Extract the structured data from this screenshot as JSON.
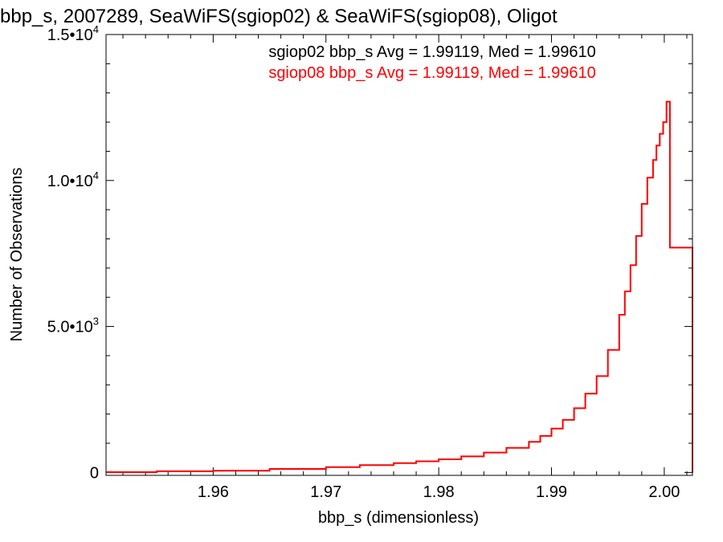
{
  "chart_data": {
    "type": "line",
    "title": "bbp_s, 2007289, SeaWiFS(sgiop02) & SeaWiFS(sgiop08), Oligot",
    "xlabel": "bbp_s (dimensionless)",
    "ylabel": "Number of Observations",
    "xlim": [
      1.9505,
      2.0025
    ],
    "ylim": [
      -100,
      15000
    ],
    "x_ticks": [
      1.96,
      1.97,
      1.98,
      1.99,
      2.0
    ],
    "x_tick_labels": [
      "1.96",
      "1.97",
      "1.98",
      "1.99",
      "2.00"
    ],
    "y_ticks": [
      0,
      5000,
      10000,
      15000
    ],
    "y_tick_labels": [
      {
        "value": 0,
        "mantissa": "0",
        "exp": ""
      },
      {
        "value": 5000,
        "mantissa": "5.0•10",
        "exp": "3"
      },
      {
        "value": 10000,
        "mantissa": "1.0•10",
        "exp": "4"
      },
      {
        "value": 15000,
        "mantissa": "1.5•10",
        "exp": "4"
      }
    ],
    "annotations": [
      {
        "text": "sgiop02 bbp_s Avg = 1.99119, Med = 1.99610",
        "color": "#000000"
      },
      {
        "text": "sgiop08 bbp_s Avg = 1.99119, Med = 1.99610",
        "color": "#ff0000"
      }
    ],
    "series": [
      {
        "name": "sgiop08",
        "color": "#ff0000",
        "render": "step",
        "x": [
          1.9505,
          1.955,
          1.96,
          1.965,
          1.97,
          1.973,
          1.976,
          1.978,
          1.98,
          1.982,
          1.984,
          1.986,
          1.988,
          1.989,
          1.99,
          1.991,
          1.992,
          1.993,
          1.994,
          1.995,
          1.996,
          1.9965,
          1.997,
          1.9975,
          1.998,
          1.9985,
          1.999,
          1.9993,
          1.9996,
          1.9999,
          2.0002,
          2.0005,
          2.0025
        ],
        "y": [
          10,
          40,
          60,
          120,
          180,
          250,
          320,
          380,
          450,
          550,
          680,
          840,
          1050,
          1250,
          1500,
          1800,
          2200,
          2700,
          3300,
          4200,
          5400,
          6200,
          7100,
          8100,
          9200,
          10100,
          10700,
          11200,
          11600,
          12000,
          12700,
          7700,
          0
        ]
      }
    ],
    "grid": false,
    "legend": "none"
  }
}
